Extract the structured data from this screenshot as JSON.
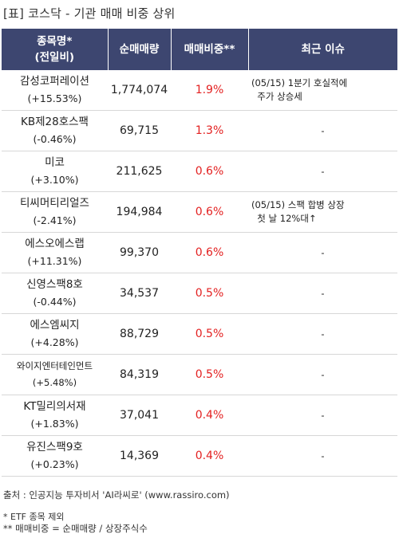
{
  "title": "[표] 코스닥 - 기관 매매 비중 상위",
  "headers": {
    "name_line1": "종목명*",
    "name_line2": "(전일비)",
    "volume": "순매매량",
    "ratio": "매매비중**",
    "issue": "최근 이슈"
  },
  "rows": [
    {
      "name": "감성코퍼레이션",
      "change": "(+15.53%)",
      "volume": "1,774,074",
      "ratio": "1.9%",
      "issue_line1": "(05/15) 1분기 호실적에",
      "issue_line2": "  주가 상승세"
    },
    {
      "name": "KB제28호스팩",
      "change": "(-0.46%)",
      "volume": "69,715",
      "ratio": "1.3%",
      "issue_line1": "-",
      "issue_line2": ""
    },
    {
      "name": "미코",
      "change": "(+3.10%)",
      "volume": "211,625",
      "ratio": "0.6%",
      "issue_line1": "-",
      "issue_line2": ""
    },
    {
      "name": "티씨머티리얼즈",
      "change": "(-2.41%)",
      "volume": "194,984",
      "ratio": "0.6%",
      "issue_line1": "(05/15) 스팩 합병 상장",
      "issue_line2": "  첫 날 12%대↑"
    },
    {
      "name": "에스오에스랩",
      "change": "(+11.31%)",
      "volume": "99,370",
      "ratio": "0.6%",
      "issue_line1": "-",
      "issue_line2": ""
    },
    {
      "name": "신영스팩8호",
      "change": "(-0.44%)",
      "volume": "34,537",
      "ratio": "0.5%",
      "issue_line1": "-",
      "issue_line2": ""
    },
    {
      "name": "에스엠씨지",
      "change": "(+4.28%)",
      "volume": "88,729",
      "ratio": "0.5%",
      "issue_line1": "-",
      "issue_line2": ""
    },
    {
      "name": "와이지엔터테인먼트",
      "change": "(+5.48%)",
      "volume": "84,319",
      "ratio": "0.5%",
      "issue_line1": "-",
      "issue_line2": ""
    },
    {
      "name": "KT밀리의서재",
      "change": "(+1.83%)",
      "volume": "37,041",
      "ratio": "0.4%",
      "issue_line1": "-",
      "issue_line2": ""
    },
    {
      "name": "유진스팩9호",
      "change": "(+0.23%)",
      "volume": "14,369",
      "ratio": "0.4%",
      "issue_line1": "-",
      "issue_line2": ""
    }
  ],
  "source": "출처 : 인공지능 투자비서 'AI라씨로' (www.rassiro.com)",
  "note1": "* ETF 종목 제외",
  "note2": "** 매매비중 = 순매매량 / 상장주식수",
  "colors": {
    "header_bg": "#3d4670",
    "ratio_text": "#e32020"
  }
}
